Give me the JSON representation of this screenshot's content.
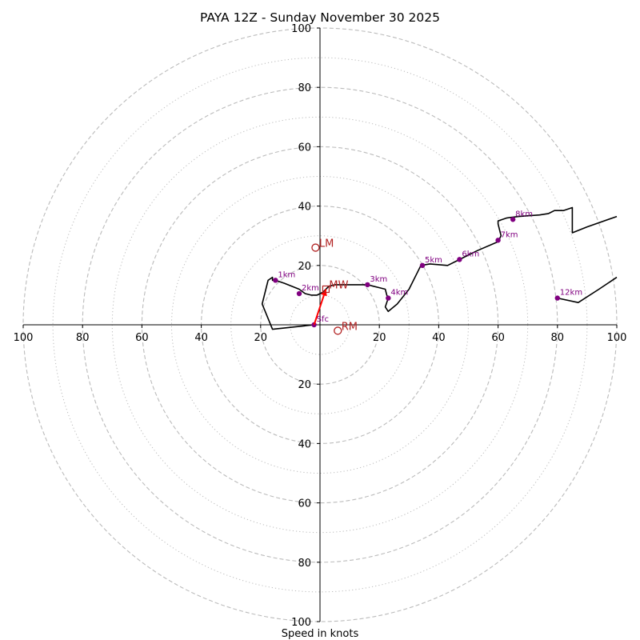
{
  "chart_data": {
    "type": "hodograph",
    "title": "PAYA 12Z - Sunday November 30 2025",
    "xlabel": "Speed in knots",
    "units": "knots",
    "range": [
      -100,
      100
    ],
    "rings_major": [
      20,
      40,
      60,
      80,
      100
    ],
    "rings_minor": [
      10,
      30,
      50,
      70,
      90
    ],
    "x_ticks": [
      {
        "value": -100,
        "label": "100"
      },
      {
        "value": -80,
        "label": "80"
      },
      {
        "value": -60,
        "label": "60"
      },
      {
        "value": -40,
        "label": "40"
      },
      {
        "value": -20,
        "label": "20"
      },
      {
        "value": 20,
        "label": "20"
      },
      {
        "value": 40,
        "label": "40"
      },
      {
        "value": 60,
        "label": "60"
      },
      {
        "value": 80,
        "label": "80"
      },
      {
        "value": 100,
        "label": "100"
      }
    ],
    "y_ticks": [
      {
        "value": 100,
        "label": "100"
      },
      {
        "value": 80,
        "label": "80"
      },
      {
        "value": 60,
        "label": "60"
      },
      {
        "value": 40,
        "label": "40"
      },
      {
        "value": 20,
        "label": "20"
      },
      {
        "value": -20,
        "label": "20"
      },
      {
        "value": -40,
        "label": "40"
      },
      {
        "value": -60,
        "label": "60"
      },
      {
        "value": -80,
        "label": "80"
      },
      {
        "value": -100,
        "label": "100"
      }
    ],
    "grid": true,
    "colors": {
      "trace": "#000000",
      "heights": "#800080",
      "motion": "#b22222",
      "mean_wind": "#ff0000",
      "grid": "#bbbbbb"
    },
    "trace": [
      [
        -2,
        0
      ],
      [
        -16,
        -1.5
      ],
      [
        -19.5,
        7
      ],
      [
        -17.5,
        15
      ],
      [
        -16,
        16
      ],
      [
        -16,
        15
      ],
      [
        -15,
        15
      ],
      [
        -12,
        14
      ],
      [
        -7,
        12
      ],
      [
        -5,
        10.5
      ],
      [
        -3,
        10
      ],
      [
        -1,
        10
      ],
      [
        1,
        11
      ],
      [
        3,
        13
      ],
      [
        5,
        13.5
      ],
      [
        8,
        13.5
      ],
      [
        13,
        13.5
      ],
      [
        16,
        13.5
      ],
      [
        18,
        13
      ],
      [
        20,
        12.5
      ],
      [
        22,
        12
      ],
      [
        22.5,
        10
      ],
      [
        23,
        9
      ],
      [
        22,
        6
      ],
      [
        23,
        4.5
      ],
      [
        26,
        7
      ],
      [
        30,
        12
      ],
      [
        34,
        20
      ],
      [
        37,
        20.5
      ],
      [
        43,
        20
      ],
      [
        47,
        22
      ],
      [
        53,
        25
      ],
      [
        60,
        28
      ],
      [
        61,
        30
      ],
      [
        60,
        34
      ],
      [
        60,
        35
      ],
      [
        63,
        36
      ],
      [
        67,
        36.5
      ],
      [
        74,
        37
      ],
      [
        77,
        37.5
      ],
      [
        79,
        38.5
      ],
      [
        82,
        38.5
      ],
      [
        85,
        39.5
      ],
      [
        85,
        31
      ],
      [
        90,
        33
      ],
      [
        100,
        36.5
      ]
    ],
    "trace_upper": [
      [
        80,
        9
      ],
      [
        87,
        7.5
      ],
      [
        94,
        12
      ],
      [
        100,
        16
      ]
    ],
    "height_labels": [
      {
        "label": "Sfc",
        "x": -2,
        "y": 0
      },
      {
        "label": "1km",
        "x": -15,
        "y": 15
      },
      {
        "label": "2km",
        "x": -7,
        "y": 10.5
      },
      {
        "label": "3km",
        "x": 16,
        "y": 13.5
      },
      {
        "label": "4km",
        "x": 23,
        "y": 9
      },
      {
        "label": "5km",
        "x": 34.5,
        "y": 20
      },
      {
        "label": "6km",
        "x": 47,
        "y": 22
      },
      {
        "label": "7km",
        "x": 60,
        "y": 28.5
      },
      {
        "label": "8km",
        "x": 65,
        "y": 35.5
      },
      {
        "label": "12km",
        "x": 80,
        "y": 9
      }
    ],
    "storm_motion": [
      {
        "label": "LM",
        "x": -1.5,
        "y": 26
      },
      {
        "label": "RM",
        "x": 6,
        "y": -2
      }
    ],
    "mean_wind": {
      "label": "MW",
      "x": 2,
      "y": 12
    }
  }
}
